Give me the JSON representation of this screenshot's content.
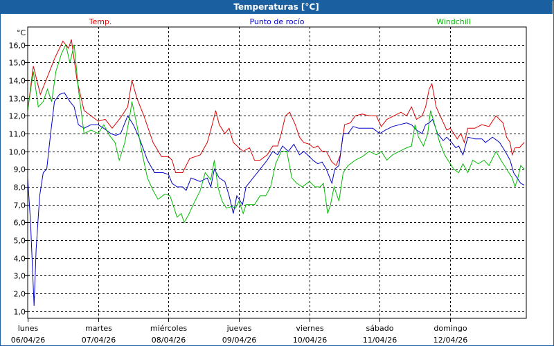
{
  "title": "Temperaturas [°C]",
  "colors": {
    "header_bg": "#1a5fa0",
    "temp": "#dd0000",
    "dew": "#0000cc",
    "wind": "#00bb00",
    "grid": "#000000"
  },
  "chart_data": {
    "type": "line",
    "ylabel": "°C",
    "ylim": [
      0.6,
      17.0
    ],
    "yticks": [
      1.0,
      2.0,
      3.0,
      4.0,
      5.0,
      6.0,
      7.0,
      8.0,
      9.0,
      10.0,
      11.0,
      12.0,
      13.0,
      14.0,
      15.0,
      16.0
    ],
    "ytick_labels": [
      "1,0",
      "2,0",
      "3,0",
      "4,0",
      "5,0",
      "6,0",
      "7,0",
      "8,0",
      "9,0",
      "10,0",
      "11,0",
      "12,0",
      "13,0",
      "14,0",
      "15,0",
      "16,0"
    ],
    "xlim": [
      0,
      7.08
    ],
    "days": [
      {
        "name": "lunes",
        "date": "06/04/26"
      },
      {
        "name": "martes",
        "date": "07/04/26"
      },
      {
        "name": "miércoles",
        "date": "08/04/26"
      },
      {
        "name": "jueves",
        "date": "09/04/26"
      },
      {
        "name": "viernes",
        "date": "10/04/26"
      },
      {
        "name": "sábado",
        "date": "11/04/26"
      },
      {
        "name": "domingo",
        "date": "12/04/26"
      }
    ],
    "grid": true,
    "series": [
      {
        "name": "Temp.",
        "color": "#dd0000",
        "points": [
          [
            0,
            12.3
          ],
          [
            0.08,
            14.8
          ],
          [
            0.18,
            13.2
          ],
          [
            0.28,
            14.2
          ],
          [
            0.38,
            15.2
          ],
          [
            0.5,
            16.2
          ],
          [
            0.58,
            15.8
          ],
          [
            0.62,
            16.3
          ],
          [
            0.7,
            14.0
          ],
          [
            0.8,
            12.3
          ],
          [
            0.9,
            12.0
          ],
          [
            1.0,
            11.7
          ],
          [
            1.1,
            11.8
          ],
          [
            1.2,
            11.3
          ],
          [
            1.32,
            11.9
          ],
          [
            1.42,
            12.5
          ],
          [
            1.48,
            14.0
          ],
          [
            1.55,
            13.0
          ],
          [
            1.65,
            12.0
          ],
          [
            1.78,
            10.5
          ],
          [
            1.9,
            9.7
          ],
          [
            2.0,
            9.7
          ],
          [
            2.05,
            9.5
          ],
          [
            2.1,
            8.8
          ],
          [
            2.2,
            8.8
          ],
          [
            2.3,
            9.6
          ],
          [
            2.45,
            9.8
          ],
          [
            2.55,
            10.5
          ],
          [
            2.62,
            11.5
          ],
          [
            2.67,
            12.3
          ],
          [
            2.72,
            11.5
          ],
          [
            2.8,
            11.0
          ],
          [
            2.86,
            11.3
          ],
          [
            2.92,
            10.5
          ],
          [
            3.0,
            10.2
          ],
          [
            3.06,
            10.0
          ],
          [
            3.15,
            10.2
          ],
          [
            3.22,
            9.5
          ],
          [
            3.3,
            9.5
          ],
          [
            3.4,
            9.8
          ],
          [
            3.48,
            10.3
          ],
          [
            3.55,
            10.3
          ],
          [
            3.6,
            11.0
          ],
          [
            3.66,
            12.0
          ],
          [
            3.72,
            12.2
          ],
          [
            3.8,
            11.5
          ],
          [
            3.86,
            10.8
          ],
          [
            3.92,
            10.5
          ],
          [
            4.0,
            10.4
          ],
          [
            4.06,
            10.2
          ],
          [
            4.12,
            10.3
          ],
          [
            4.18,
            10.0
          ],
          [
            4.24,
            10.0
          ],
          [
            4.32,
            9.4
          ],
          [
            4.38,
            9.2
          ],
          [
            4.44,
            9.8
          ],
          [
            4.5,
            11.5
          ],
          [
            4.58,
            11.6
          ],
          [
            4.65,
            12.0
          ],
          [
            4.75,
            12.1
          ],
          [
            4.85,
            12.0
          ],
          [
            4.95,
            12.0
          ],
          [
            5.02,
            11.4
          ],
          [
            5.1,
            11.8
          ],
          [
            5.2,
            12.0
          ],
          [
            5.3,
            12.2
          ],
          [
            5.38,
            12.0
          ],
          [
            5.45,
            12.5
          ],
          [
            5.52,
            11.8
          ],
          [
            5.6,
            12.0
          ],
          [
            5.65,
            12.5
          ],
          [
            5.7,
            13.5
          ],
          [
            5.74,
            13.8
          ],
          [
            5.8,
            12.5
          ],
          [
            5.88,
            11.8
          ],
          [
            5.95,
            11.2
          ],
          [
            6.0,
            11.3
          ],
          [
            6.05,
            11.0
          ],
          [
            6.1,
            10.7
          ],
          [
            6.15,
            11.0
          ],
          [
            6.2,
            10.5
          ],
          [
            6.25,
            11.3
          ],
          [
            6.35,
            11.3
          ],
          [
            6.45,
            11.5
          ],
          [
            6.55,
            11.4
          ],
          [
            6.65,
            12.0
          ],
          [
            6.75,
            11.6
          ],
          [
            6.8,
            10.8
          ],
          [
            6.85,
            10.5
          ],
          [
            6.88,
            9.8
          ],
          [
            6.92,
            10.2
          ],
          [
            6.98,
            10.2
          ],
          [
            7.05,
            10.5
          ]
        ]
      },
      {
        "name": "Punto de rocío",
        "color": "#0000cc",
        "points": [
          [
            0,
            8.5
          ],
          [
            0.04,
            6.0
          ],
          [
            0.09,
            1.3
          ],
          [
            0.12,
            4.5
          ],
          [
            0.17,
            7.5
          ],
          [
            0.22,
            8.8
          ],
          [
            0.27,
            9.0
          ],
          [
            0.32,
            10.8
          ],
          [
            0.38,
            12.8
          ],
          [
            0.45,
            13.2
          ],
          [
            0.52,
            13.3
          ],
          [
            0.6,
            12.8
          ],
          [
            0.66,
            12.5
          ],
          [
            0.72,
            11.5
          ],
          [
            0.8,
            11.3
          ],
          [
            0.9,
            11.5
          ],
          [
            1.0,
            11.5
          ],
          [
            1.08,
            11.3
          ],
          [
            1.18,
            11.0
          ],
          [
            1.25,
            10.9
          ],
          [
            1.32,
            11.0
          ],
          [
            1.42,
            12.0
          ],
          [
            1.5,
            11.5
          ],
          [
            1.58,
            10.8
          ],
          [
            1.7,
            9.5
          ],
          [
            1.8,
            8.8
          ],
          [
            1.92,
            8.8
          ],
          [
            2.0,
            8.7
          ],
          [
            2.05,
            8.2
          ],
          [
            2.12,
            8.0
          ],
          [
            2.2,
            8.0
          ],
          [
            2.25,
            7.8
          ],
          [
            2.32,
            8.5
          ],
          [
            2.45,
            8.3
          ],
          [
            2.55,
            8.5
          ],
          [
            2.6,
            8.0
          ],
          [
            2.65,
            9.0
          ],
          [
            2.72,
            8.5
          ],
          [
            2.8,
            8.3
          ],
          [
            2.86,
            7.5
          ],
          [
            2.92,
            6.5
          ],
          [
            2.97,
            7.5
          ],
          [
            3.05,
            7.0
          ],
          [
            3.1,
            8.0
          ],
          [
            3.2,
            8.5
          ],
          [
            3.3,
            9.0
          ],
          [
            3.4,
            9.5
          ],
          [
            3.48,
            10.0
          ],
          [
            3.55,
            9.8
          ],
          [
            3.62,
            10.3
          ],
          [
            3.7,
            10.0
          ],
          [
            3.78,
            10.4
          ],
          [
            3.86,
            9.8
          ],
          [
            3.92,
            10.0
          ],
          [
            4.0,
            9.7
          ],
          [
            4.05,
            9.5
          ],
          [
            4.12,
            9.3
          ],
          [
            4.18,
            9.4
          ],
          [
            4.24,
            9.0
          ],
          [
            4.32,
            8.2
          ],
          [
            4.36,
            9.0
          ],
          [
            4.42,
            9.2
          ],
          [
            4.48,
            11.0
          ],
          [
            4.55,
            11.0
          ],
          [
            4.62,
            11.4
          ],
          [
            4.7,
            11.3
          ],
          [
            4.8,
            11.3
          ],
          [
            4.9,
            11.3
          ],
          [
            5.0,
            11.0
          ],
          [
            5.08,
            11.2
          ],
          [
            5.18,
            11.4
          ],
          [
            5.28,
            11.5
          ],
          [
            5.38,
            11.6
          ],
          [
            5.45,
            11.5
          ],
          [
            5.52,
            11.2
          ],
          [
            5.6,
            11.0
          ],
          [
            5.65,
            11.5
          ],
          [
            5.7,
            11.6
          ],
          [
            5.75,
            11.8
          ],
          [
            5.82,
            11.0
          ],
          [
            5.9,
            10.6
          ],
          [
            5.95,
            10.8
          ],
          [
            6.02,
            10.5
          ],
          [
            6.08,
            10.2
          ],
          [
            6.12,
            10.3
          ],
          [
            6.18,
            9.8
          ],
          [
            6.25,
            10.8
          ],
          [
            6.35,
            10.7
          ],
          [
            6.45,
            10.7
          ],
          [
            6.5,
            10.5
          ],
          [
            6.6,
            10.8
          ],
          [
            6.7,
            10.5
          ],
          [
            6.78,
            10.0
          ],
          [
            6.85,
            9.5
          ],
          [
            6.9,
            8.8
          ],
          [
            6.95,
            8.5
          ],
          [
            7.0,
            8.2
          ],
          [
            7.05,
            8.1
          ]
        ]
      },
      {
        "name": "Windchill",
        "color": "#00bb00",
        "points": [
          [
            0,
            12.3
          ],
          [
            0.08,
            14.5
          ],
          [
            0.15,
            12.5
          ],
          [
            0.22,
            12.8
          ],
          [
            0.28,
            13.5
          ],
          [
            0.34,
            12.8
          ],
          [
            0.4,
            14.5
          ],
          [
            0.48,
            15.5
          ],
          [
            0.54,
            16.0
          ],
          [
            0.6,
            15.0
          ],
          [
            0.66,
            16.0
          ],
          [
            0.72,
            13.5
          ],
          [
            0.8,
            11.0
          ],
          [
            0.9,
            11.2
          ],
          [
            1.0,
            11.0
          ],
          [
            1.08,
            11.5
          ],
          [
            1.16,
            10.9
          ],
          [
            1.24,
            10.5
          ],
          [
            1.3,
            9.5
          ],
          [
            1.38,
            10.5
          ],
          [
            1.45,
            12.0
          ],
          [
            1.48,
            12.8
          ],
          [
            1.55,
            11.5
          ],
          [
            1.62,
            10.0
          ],
          [
            1.7,
            8.5
          ],
          [
            1.78,
            7.8
          ],
          [
            1.85,
            7.3
          ],
          [
            1.95,
            7.6
          ],
          [
            2.02,
            7.5
          ],
          [
            2.08,
            6.8
          ],
          [
            2.12,
            6.3
          ],
          [
            2.18,
            6.5
          ],
          [
            2.22,
            6.0
          ],
          [
            2.28,
            6.4
          ],
          [
            2.35,
            7.0
          ],
          [
            2.45,
            7.8
          ],
          [
            2.52,
            8.8
          ],
          [
            2.6,
            8.4
          ],
          [
            2.65,
            9.5
          ],
          [
            2.7,
            8.0
          ],
          [
            2.76,
            7.2
          ],
          [
            2.82,
            6.8
          ],
          [
            2.9,
            6.9
          ],
          [
            2.95,
            6.8
          ],
          [
            3.0,
            7.2
          ],
          [
            3.06,
            6.5
          ],
          [
            3.1,
            7.0
          ],
          [
            3.15,
            7.0
          ],
          [
            3.22,
            7.0
          ],
          [
            3.3,
            7.5
          ],
          [
            3.38,
            7.5
          ],
          [
            3.45,
            8.0
          ],
          [
            3.52,
            9.3
          ],
          [
            3.6,
            10.0
          ],
          [
            3.68,
            10.0
          ],
          [
            3.75,
            8.5
          ],
          [
            3.82,
            8.2
          ],
          [
            3.9,
            8.0
          ],
          [
            4.0,
            8.3
          ],
          [
            4.08,
            8.0
          ],
          [
            4.15,
            8.0
          ],
          [
            4.2,
            8.2
          ],
          [
            4.26,
            6.5
          ],
          [
            4.3,
            7.0
          ],
          [
            4.35,
            8.0
          ],
          [
            4.42,
            7.2
          ],
          [
            4.48,
            8.8
          ],
          [
            4.55,
            9.2
          ],
          [
            4.65,
            9.5
          ],
          [
            4.75,
            9.7
          ],
          [
            4.85,
            10.0
          ],
          [
            4.95,
            9.8
          ],
          [
            5.02,
            10.0
          ],
          [
            5.1,
            9.5
          ],
          [
            5.18,
            9.8
          ],
          [
            5.28,
            10.0
          ],
          [
            5.38,
            10.2
          ],
          [
            5.45,
            10.3
          ],
          [
            5.5,
            11.5
          ],
          [
            5.55,
            10.8
          ],
          [
            5.62,
            10.3
          ],
          [
            5.68,
            11.0
          ],
          [
            5.72,
            12.3
          ],
          [
            5.78,
            11.5
          ],
          [
            5.85,
            10.5
          ],
          [
            5.92,
            9.8
          ],
          [
            6.0,
            9.3
          ],
          [
            6.05,
            9.0
          ],
          [
            6.12,
            8.8
          ],
          [
            6.18,
            9.3
          ],
          [
            6.25,
            8.8
          ],
          [
            6.32,
            9.5
          ],
          [
            6.4,
            9.3
          ],
          [
            6.48,
            9.5
          ],
          [
            6.55,
            9.2
          ],
          [
            6.65,
            10.0
          ],
          [
            6.72,
            9.5
          ],
          [
            6.8,
            9.0
          ],
          [
            6.88,
            8.5
          ],
          [
            6.92,
            8.0
          ],
          [
            6.96,
            8.5
          ],
          [
            7.0,
            9.2
          ],
          [
            7.05,
            9.0
          ]
        ]
      }
    ]
  }
}
